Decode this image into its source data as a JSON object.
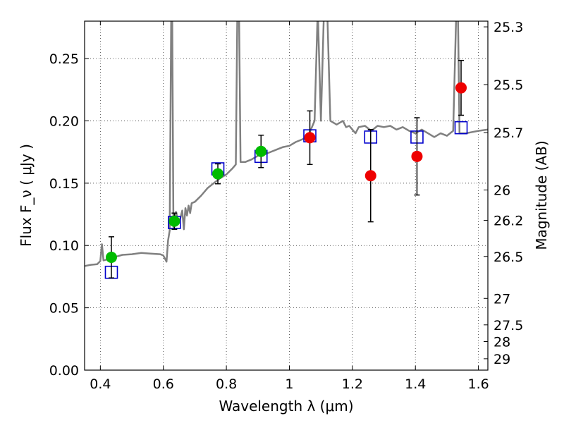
{
  "chart_data": {
    "type": "scatter",
    "title": "",
    "xlabel": "Wavelength  λ (μm)",
    "ylabel": "Flux  F_ν  ( μJy )",
    "ylabel_right": "Magnitude (AB)",
    "xlim": [
      0.35,
      1.63
    ],
    "ylim": [
      0,
      0.28
    ],
    "grid": true,
    "x_ticks": [
      0.4,
      0.6,
      0.8,
      1.0,
      1.2,
      1.4,
      1.6
    ],
    "x_tick_labels": [
      "0.4",
      "0.6",
      "0.8",
      "1",
      "1.2",
      "1.4",
      "1.6"
    ],
    "y_ticks": [
      0.0,
      0.05,
      0.1,
      0.15,
      0.2,
      0.25
    ],
    "y_tick_labels": [
      "0.00",
      "0.05",
      "0.10",
      "0.15",
      "0.20",
      "0.25"
    ],
    "right_ticks": [
      {
        "mag": 25.3,
        "label": "25.3"
      },
      {
        "mag": 25.5,
        "label": "25.5"
      },
      {
        "mag": 25.7,
        "label": "25.7"
      },
      {
        "mag": 26.0,
        "label": "26"
      },
      {
        "mag": 26.2,
        "label": "26.2"
      },
      {
        "mag": 26.5,
        "label": "26.5"
      },
      {
        "mag": 27.0,
        "label": "27"
      },
      {
        "mag": 27.5,
        "label": "27.5"
      },
      {
        "mag": 28.0,
        "label": "28"
      },
      {
        "mag": 29.0,
        "label": "29"
      }
    ],
    "series": [
      {
        "kind": "line",
        "color": "#808080",
        "points": [
          [
            0.35,
            0.0835
          ],
          [
            0.37,
            0.0845
          ],
          [
            0.39,
            0.085
          ],
          [
            0.4,
            0.0875
          ],
          [
            0.405,
            0.101
          ],
          [
            0.41,
            0.088
          ],
          [
            0.43,
            0.0895
          ],
          [
            0.45,
            0.091
          ],
          [
            0.47,
            0.0925
          ],
          [
            0.5,
            0.093
          ],
          [
            0.53,
            0.094
          ],
          [
            0.56,
            0.0935
          ],
          [
            0.59,
            0.093
          ],
          [
            0.6,
            0.092
          ],
          [
            0.61,
            0.087
          ],
          [
            0.615,
            0.104
          ],
          [
            0.62,
            0.112
          ],
          [
            0.625,
            0.29
          ],
          [
            0.628,
            0.29
          ],
          [
            0.632,
            0.115
          ],
          [
            0.64,
            0.127
          ],
          [
            0.645,
            0.122
          ],
          [
            0.65,
            0.118
          ],
          [
            0.66,
            0.128
          ],
          [
            0.665,
            0.113
          ],
          [
            0.67,
            0.13
          ],
          [
            0.675,
            0.124
          ],
          [
            0.68,
            0.132
          ],
          [
            0.685,
            0.126
          ],
          [
            0.69,
            0.134
          ],
          [
            0.7,
            0.135
          ],
          [
            0.72,
            0.14
          ],
          [
            0.74,
            0.146
          ],
          [
            0.76,
            0.15
          ],
          [
            0.78,
            0.154
          ],
          [
            0.8,
            0.157
          ],
          [
            0.82,
            0.162
          ],
          [
            0.83,
            0.165
          ],
          [
            0.835,
            0.29
          ],
          [
            0.84,
            0.29
          ],
          [
            0.845,
            0.167
          ],
          [
            0.86,
            0.167
          ],
          [
            0.88,
            0.169
          ],
          [
            0.9,
            0.172
          ],
          [
            0.92,
            0.173
          ],
          [
            0.94,
            0.175
          ],
          [
            0.96,
            0.177
          ],
          [
            0.98,
            0.179
          ],
          [
            1.0,
            0.18
          ],
          [
            1.02,
            0.183
          ],
          [
            1.04,
            0.185
          ],
          [
            1.06,
            0.188
          ],
          [
            1.08,
            0.2
          ],
          [
            1.09,
            0.29
          ],
          [
            1.1,
            0.2
          ],
          [
            1.11,
            0.29
          ],
          [
            1.12,
            0.29
          ],
          [
            1.13,
            0.2
          ],
          [
            1.15,
            0.197
          ],
          [
            1.17,
            0.2
          ],
          [
            1.18,
            0.195
          ],
          [
            1.19,
            0.196
          ],
          [
            1.2,
            0.193
          ],
          [
            1.21,
            0.19
          ],
          [
            1.22,
            0.195
          ],
          [
            1.24,
            0.196
          ],
          [
            1.26,
            0.192
          ],
          [
            1.28,
            0.196
          ],
          [
            1.3,
            0.195
          ],
          [
            1.32,
            0.196
          ],
          [
            1.34,
            0.193
          ],
          [
            1.36,
            0.195
          ],
          [
            1.38,
            0.192
          ],
          [
            1.4,
            0.19
          ],
          [
            1.42,
            0.193
          ],
          [
            1.44,
            0.19
          ],
          [
            1.46,
            0.187
          ],
          [
            1.48,
            0.19
          ],
          [
            1.5,
            0.188
          ],
          [
            1.52,
            0.192
          ],
          [
            1.53,
            0.29
          ],
          [
            1.535,
            0.29
          ],
          [
            1.54,
            0.19
          ],
          [
            1.56,
            0.19
          ],
          [
            1.58,
            0.191
          ],
          [
            1.6,
            0.192
          ],
          [
            1.63,
            0.193
          ]
        ]
      },
      {
        "kind": "open-square",
        "color": "#0000cc",
        "points": [
          [
            0.435,
            0.0785
          ],
          [
            0.635,
            0.1185
          ],
          [
            0.773,
            0.1615
          ],
          [
            0.91,
            0.1715
          ],
          [
            1.065,
            0.188
          ],
          [
            1.258,
            0.187
          ],
          [
            1.405,
            0.187
          ],
          [
            1.545,
            0.1945
          ]
        ]
      },
      {
        "kind": "filled-circle",
        "color": "#00bb00",
        "points": [
          {
            "x": 0.435,
            "y": 0.0905,
            "err": [
              0.0165,
              0.0165
            ]
          },
          {
            "x": 0.635,
            "y": 0.1195,
            "err": [
              0.0065,
              0.0065
            ]
          },
          {
            "x": 0.773,
            "y": 0.1575,
            "err": [
              0.008,
              0.008
            ]
          },
          {
            "x": 0.91,
            "y": 0.1755,
            "err": [
              0.013,
              0.013
            ]
          }
        ]
      },
      {
        "kind": "filled-circle",
        "color": "#ee0000",
        "points": [
          {
            "x": 1.065,
            "y": 0.1865,
            "err": [
              0.0215,
              0.0215
            ]
          },
          {
            "x": 1.258,
            "y": 0.156,
            "err": [
              0.037,
              0.037
            ]
          },
          {
            "x": 1.405,
            "y": 0.1715,
            "err": [
              0.031,
              0.031
            ]
          },
          {
            "x": 1.545,
            "y": 0.2265,
            "err": [
              0.022,
              0.022
            ]
          }
        ]
      }
    ]
  }
}
